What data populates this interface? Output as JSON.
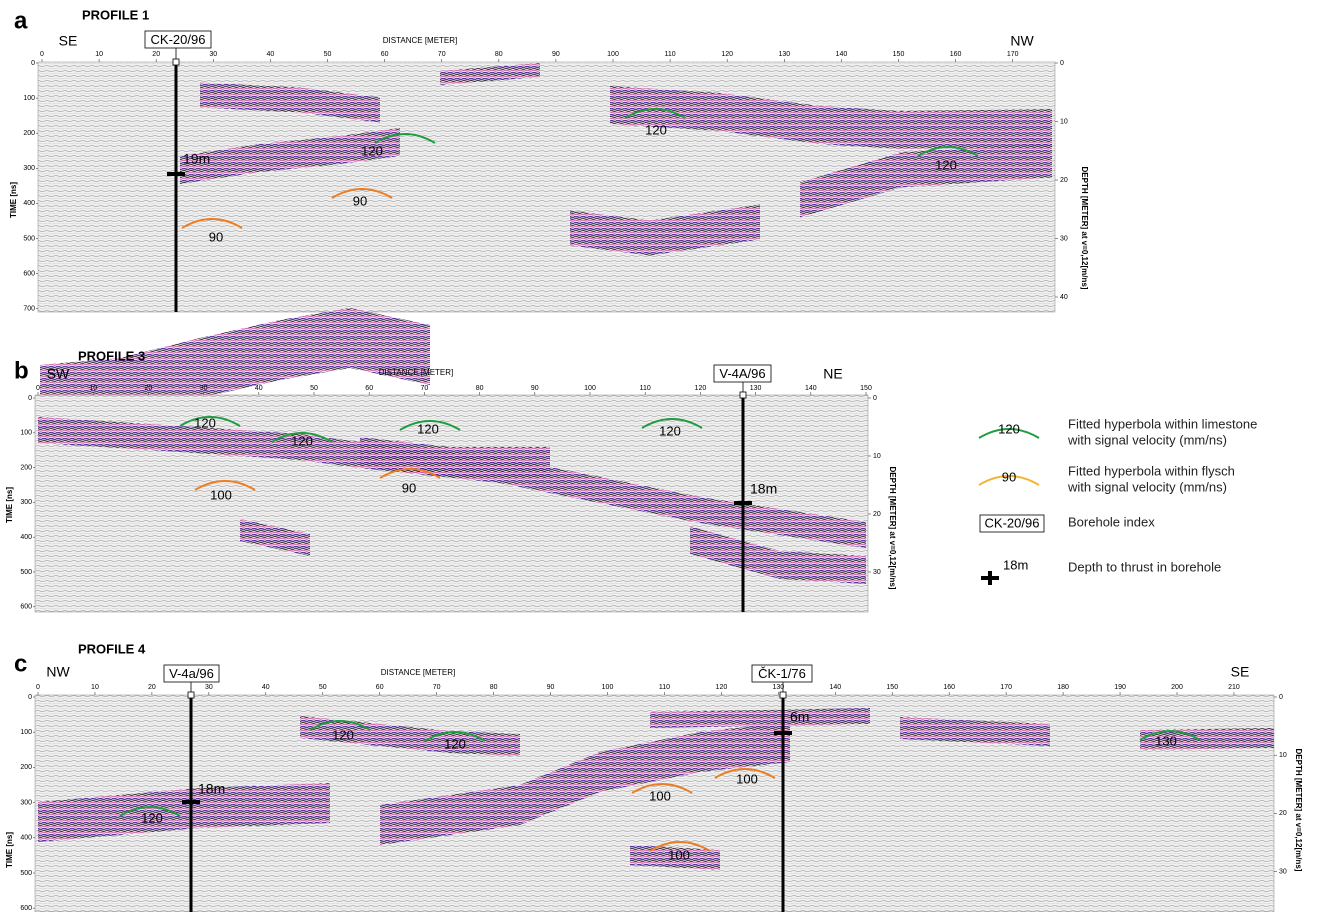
{
  "panels": [
    {
      "letter": "a",
      "title": "PROFILE 1",
      "left_end": "SE",
      "right_end": "NW",
      "x_axis_title": "DISTANCE [METER]",
      "y_axis_title": "TIME [ns]",
      "y2_axis_title": "DEPTH [METER] at v=0,12[m/ns]",
      "xticks": [
        0,
        10,
        20,
        30,
        40,
        50,
        60,
        70,
        80,
        90,
        100,
        110,
        120,
        130,
        140,
        150,
        160,
        170
      ],
      "yticks": [
        0,
        100,
        200,
        300,
        400,
        500,
        600,
        700
      ],
      "y2ticks": [
        0,
        10,
        20,
        30,
        40
      ],
      "boreholes": [
        {
          "name": "CK-20/96",
          "thrust_depth": "19m"
        }
      ],
      "limestone_hyperbolas": [
        120,
        120,
        120
      ],
      "flysch_hyperbolas": [
        90,
        90
      ]
    },
    {
      "letter": "b",
      "title": "PROFILE 3",
      "left_end": "SW",
      "right_end": "NE",
      "x_axis_title": "DISTANCE [METER]",
      "y_axis_title": "TIME [ns]",
      "y2_axis_title": "DEPTH [METER] at v=0,12[m/ns]",
      "xticks": [
        0,
        10,
        20,
        30,
        40,
        50,
        60,
        70,
        80,
        90,
        100,
        110,
        120,
        130,
        140,
        150
      ],
      "yticks": [
        0,
        100,
        200,
        300,
        400,
        500,
        600
      ],
      "y2ticks": [
        0,
        10,
        20,
        30
      ],
      "boreholes": [
        {
          "name": "V-4A/96",
          "thrust_depth": "18m"
        }
      ],
      "limestone_hyperbolas": [
        120,
        120,
        120,
        120
      ],
      "flysch_hyperbolas": [
        100,
        90
      ]
    },
    {
      "letter": "c",
      "title": "PROFILE 4",
      "left_end": "NW",
      "right_end": "SE",
      "x_axis_title": "DISTANCE [METER]",
      "y_axis_title": "TIME [ns]",
      "y2_axis_title": "DEPTH [METER] at v=0,12[m/ns]",
      "xticks": [
        0,
        10,
        20,
        30,
        40,
        50,
        60,
        70,
        80,
        90,
        100,
        110,
        120,
        130,
        140,
        150,
        160,
        170,
        180,
        190,
        200,
        210
      ],
      "yticks": [
        0,
        100,
        200,
        300,
        400,
        500,
        600
      ],
      "y2ticks": [
        0,
        10,
        20,
        30
      ],
      "boreholes": [
        {
          "name": "V-4a/96",
          "thrust_depth": "18m"
        },
        {
          "name": "ČK-1/76",
          "thrust_depth": "6m"
        }
      ],
      "limestone_hyperbolas": [
        120,
        120,
        120,
        130
      ],
      "flysch_hyperbolas": [
        100,
        100,
        100
      ]
    }
  ],
  "legend": [
    {
      "symbol": 120,
      "text": [
        "Fitted hyperbola within limestone",
        "with signal velocity (mm/ns)"
      ]
    },
    {
      "symbol": 90,
      "text": [
        "Fitted hyperbola within flysch",
        "with signal velocity (mm/ns)"
      ]
    },
    {
      "symbol": "CK-20/96",
      "text": [
        "Borehole index"
      ]
    },
    {
      "symbol": "18m",
      "text": [
        "Depth to thrust in borehole"
      ]
    }
  ]
}
